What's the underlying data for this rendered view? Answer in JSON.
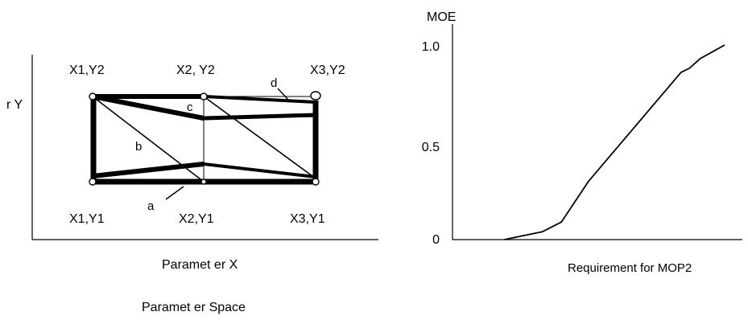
{
  "left_figure": {
    "y_axis_label": "r Y",
    "x_axis_label": "Paramet er X",
    "caption": "Paramet er Space",
    "corner_labels": {
      "x1y2": "X1,Y2",
      "x2y2": "X2, Y2",
      "x3y2": "X3,Y2",
      "x1y1": "X1,Y1",
      "x2y1": "X2,Y1",
      "x3y1": "X3,Y1"
    },
    "path_labels": {
      "a": "a",
      "b": "b",
      "c": "c",
      "d": "d"
    }
  },
  "chart_data": {
    "type": "line",
    "ylabel": "MOE",
    "xlabel": "Requirement for MOP2",
    "y_ticks": [
      "1.0",
      "0.5",
      "0"
    ],
    "ylim": [
      0,
      1.0
    ],
    "x_ticks_shown": false,
    "xlim": [
      0,
      1
    ],
    "series": [
      {
        "x": [
          0.19,
          0.33,
          0.4,
          0.5,
          0.84,
          0.87,
          0.91,
          1.0
        ],
        "y": [
          0.0,
          0.04,
          0.09,
          0.3,
          0.86,
          0.88,
          0.93,
          1.0
        ]
      }
    ],
    "grid": false
  }
}
